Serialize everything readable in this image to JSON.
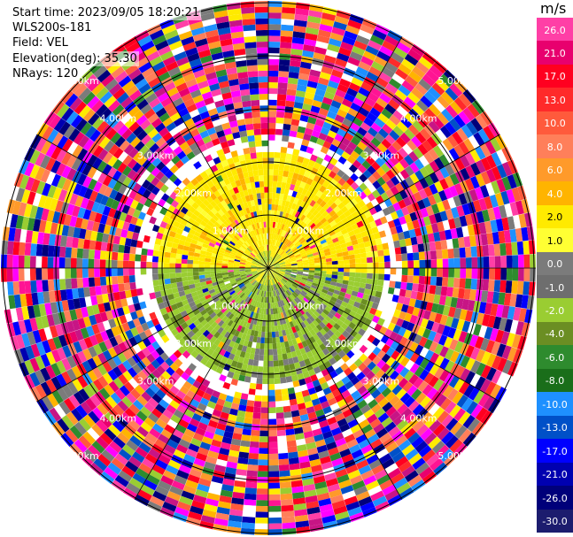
{
  "info": {
    "start_time": "Start time: 2023/09/05 18:20:21",
    "station": "WLS200s-181",
    "field": "Field: VEL",
    "elevation": "Elevation(deg): 35.30",
    "nrays": "NRays: 120"
  },
  "colorbar": {
    "unit": "m/s",
    "ticks": [
      "26.0",
      "21.0",
      "17.0",
      "13.0",
      "10.0",
      "8.0",
      "6.0",
      "4.0",
      "2.0",
      "1.0",
      "0.0",
      "-1.0",
      "-2.0",
      "-4.0",
      "-6.0",
      "-8.0",
      "-10.0",
      "-13.0",
      "-17.0",
      "-21.0",
      "-26.0",
      "-30.0"
    ],
    "colors": [
      "#ff3fa6",
      "#e8006e",
      "#ff0020",
      "#ff2a2a",
      "#ff5a3c",
      "#ff7f5a",
      "#ff9a2a",
      "#ffb400",
      "#ffea00",
      "#ffff33",
      "#7b7b7b",
      "#6e6e6e",
      "#9acd32",
      "#6b8e23",
      "#2e8b2e",
      "#1a6e1a",
      "#1e90ff",
      "#0050c8",
      "#0000ff",
      "#0000b0",
      "#00007a",
      "#1c1c6e"
    ]
  },
  "range_labels": {
    "km_1": "1.00km",
    "km_2": "2.00km",
    "km_3": "3.00km",
    "km_4": "4.00km",
    "km_5": "5.00km"
  }
}
